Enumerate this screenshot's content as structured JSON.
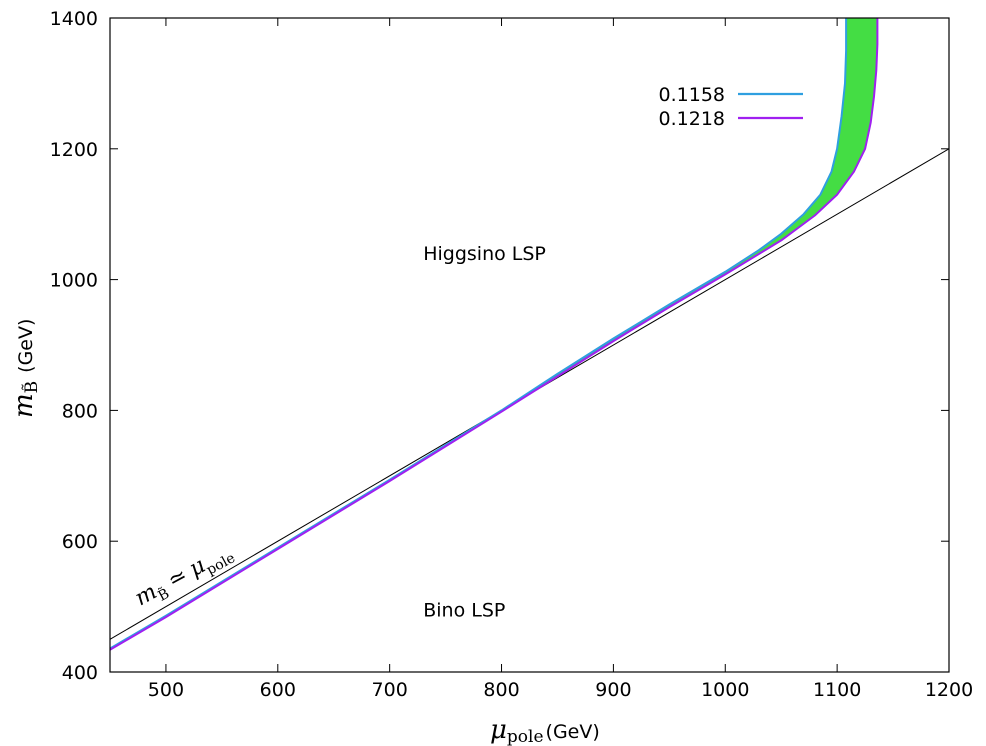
{
  "chart_data": {
    "type": "line",
    "xlabel": {
      "symbol": "μ",
      "subscript": "pole",
      "unit": "(GeV)"
    },
    "ylabel": {
      "symbol": "m",
      "subscript": "B̃",
      "unit": "(GeV)"
    },
    "xlim": [
      450,
      1200
    ],
    "ylim": [
      400,
      1400
    ],
    "x_ticks": [
      500,
      600,
      700,
      800,
      900,
      1000,
      1100,
      1200
    ],
    "y_ticks": [
      400,
      600,
      800,
      1000,
      1200,
      1400
    ],
    "grid": false,
    "legend_placement": "top-right",
    "series": [
      {
        "name": "0.1158",
        "color": "#2f9fe0",
        "x": [
          450,
          500,
          600,
          700,
          800,
          850,
          900,
          950,
          1000,
          1030,
          1050,
          1070,
          1085,
          1095,
          1100,
          1104,
          1107,
          1108,
          1108
        ],
        "y": [
          436,
          486,
          590,
          694,
          800,
          856,
          910,
          962,
          1012,
          1045,
          1070,
          1100,
          1130,
          1165,
          1200,
          1250,
          1300,
          1350,
          1400
        ]
      },
      {
        "name": "0.1218",
        "color": "#a020f0",
        "x": [
          450,
          500,
          600,
          700,
          800,
          850,
          900,
          950,
          1000,
          1050,
          1080,
          1100,
          1115,
          1125,
          1130,
          1133,
          1135,
          1136,
          1136
        ],
        "y": [
          434,
          484,
          588,
          692,
          798,
          852,
          906,
          958,
          1008,
          1060,
          1098,
          1130,
          1165,
          1200,
          1240,
          1280,
          1320,
          1360,
          1400
        ]
      }
    ],
    "fill_between": {
      "color": "#44dd44",
      "edge_color": "#228822"
    },
    "reference_line": {
      "x": [
        450,
        1200
      ],
      "y": [
        450,
        1200
      ],
      "color": "#000000",
      "label": {
        "symbol": "m",
        "subscript_symbol": "B̃",
        "relation": "≃",
        "rhs_symbol": "μ",
        "rhs_subscript": "pole"
      }
    },
    "annotations": [
      {
        "text": "Higgsino LSP",
        "x": 730,
        "y": 1030
      },
      {
        "text": "Bino LSP",
        "x": 730,
        "y": 485
      }
    ]
  }
}
